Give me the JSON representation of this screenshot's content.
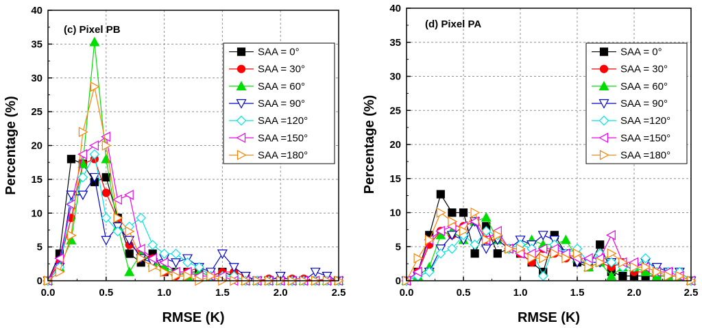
{
  "chart_data": [
    {
      "type": "line",
      "title": "(c) Pixel PB",
      "xlabel": "RMSE (K)",
      "ylabel": "Percentage (%)",
      "xlim": [
        0,
        2.5
      ],
      "ylim": [
        0,
        40
      ],
      "xticks": [
        "0.0",
        "0.5",
        "1.0",
        "1.5",
        "2.0",
        "2.5"
      ],
      "yticks": [
        "0",
        "5",
        "10",
        "15",
        "20",
        "25",
        "30",
        "35",
        "40"
      ],
      "grid": true,
      "legend_position": "top-right",
      "x": [
        0.0,
        0.1,
        0.2,
        0.3,
        0.4,
        0.5,
        0.6,
        0.7,
        0.8,
        0.9,
        1.0,
        1.1,
        1.2,
        1.3,
        1.4,
        1.5,
        1.6,
        1.7,
        1.8,
        1.9,
        2.0,
        2.1,
        2.2,
        2.3,
        2.4,
        2.5
      ],
      "series": [
        {
          "name": "SAA =  0°",
          "color": "#000000",
          "marker": "square",
          "filled": true,
          "values": [
            0,
            4,
            18,
            17.3,
            14.6,
            15.3,
            9.3,
            4,
            2.7,
            4,
            1.3,
            1.3,
            1.3,
            1.3,
            0.7,
            1.3,
            0.7,
            0,
            0,
            0,
            0,
            0,
            0,
            0,
            0,
            0
          ]
        },
        {
          "name": "SAA = 30°",
          "color": "#ff0000",
          "marker": "circle",
          "filled": true,
          "values": [
            0,
            2.7,
            9.3,
            17.3,
            18,
            13,
            9,
            5.3,
            4,
            3.3,
            1.3,
            0.7,
            1.3,
            2,
            0.7,
            1.3,
            1.3,
            0.7,
            0,
            0.3,
            0.3,
            0.3,
            0.3,
            0,
            0.3,
            0
          ]
        },
        {
          "name": "SAA = 60°",
          "color": "#00dd00",
          "marker": "triangle-up",
          "filled": true,
          "values": [
            0,
            2,
            6,
            17.3,
            35.3,
            18,
            8,
            1.3,
            4,
            2.7,
            2,
            1.3,
            0.7,
            1.3,
            0.7,
            0.7,
            0.7,
            0,
            0,
            0,
            0,
            0,
            0,
            0,
            0,
            0
          ]
        },
        {
          "name": "SAA = 90°",
          "color": "#0000cc",
          "marker": "triangle-down",
          "filled": false,
          "values": [
            0,
            2,
            12.7,
            12.7,
            15.3,
            6,
            8,
            6,
            3.3,
            2.7,
            3.3,
            2.7,
            3.3,
            2,
            1.3,
            4,
            2,
            0.7,
            0,
            0,
            0.7,
            0,
            0,
            1.3,
            0.7,
            0
          ]
        },
        {
          "name": "SAA =120°",
          "color": "#00e5e5",
          "marker": "diamond",
          "filled": false,
          "values": [
            0,
            2,
            11.3,
            15.3,
            18.7,
            9.3,
            7.3,
            8,
            9.3,
            5.3,
            4,
            4,
            2.7,
            2,
            0.7,
            0.7,
            0.7,
            0,
            0,
            0,
            0,
            0,
            0,
            0,
            0,
            0
          ]
        },
        {
          "name": "SAA =150°",
          "color": "#ee00ee",
          "marker": "triangle-left",
          "filled": false,
          "values": [
            0,
            3.3,
            11.3,
            18.7,
            20,
            21.3,
            12,
            12.7,
            4.7,
            3.3,
            2.7,
            1.3,
            1.3,
            0.7,
            0.7,
            0.7,
            0,
            0,
            0,
            0,
            0,
            0,
            0,
            0,
            0,
            0
          ]
        },
        {
          "name": "SAA =180°",
          "color": "#ff8000",
          "marker": "triangle-right",
          "filled": false,
          "values": [
            0,
            1.3,
            6.7,
            22,
            28.7,
            20,
            9.3,
            7.3,
            3.3,
            2,
            1.3,
            0.7,
            0.7,
            0,
            0.7,
            0,
            0,
            0,
            0,
            0,
            0,
            0,
            0,
            0,
            0,
            0
          ]
        }
      ]
    },
    {
      "type": "line",
      "title": "(d) Pixel PA",
      "xlabel": "RMSE (K)",
      "ylabel": "Percentage (%)",
      "xlim": [
        0,
        2.5
      ],
      "ylim": [
        0,
        40
      ],
      "xticks": [
        "0.0",
        "0.5",
        "1.0",
        "1.5",
        "2.0",
        "2.5"
      ],
      "yticks": [
        "0",
        "5",
        "10",
        "15",
        "20",
        "25",
        "30",
        "35",
        "40"
      ],
      "grid": true,
      "legend_position": "top-right",
      "x": [
        0.0,
        0.1,
        0.2,
        0.3,
        0.4,
        0.5,
        0.6,
        0.7,
        0.8,
        0.9,
        1.0,
        1.1,
        1.2,
        1.3,
        1.4,
        1.5,
        1.6,
        1.7,
        1.8,
        1.9,
        2.0,
        2.1,
        2.2,
        2.3,
        2.4,
        2.5
      ],
      "series": [
        {
          "name": "SAA =  0°",
          "color": "#000000",
          "marker": "square",
          "filled": true,
          "values": [
            0,
            1.3,
            6.7,
            12.7,
            10,
            10,
            4,
            8,
            4,
            4.7,
            4,
            2.7,
            1.3,
            6.7,
            4,
            2.7,
            2,
            5.3,
            1.3,
            0.7,
            0.7,
            0.7,
            0.7,
            0.7,
            0.7,
            0
          ]
        },
        {
          "name": "SAA = 30°",
          "color": "#ff0000",
          "marker": "circle",
          "filled": true,
          "values": [
            0,
            1.3,
            5.3,
            7.3,
            6.7,
            8,
            8.7,
            6,
            6,
            4.7,
            4,
            2.7,
            4.7,
            4,
            3.3,
            3.3,
            2,
            2.7,
            2,
            2.7,
            1.3,
            1.3,
            0.7,
            0.7,
            0.7,
            0
          ]
        },
        {
          "name": "SAA = 60°",
          "color": "#00dd00",
          "marker": "triangle-up",
          "filled": true,
          "values": [
            0,
            0.7,
            2,
            6.7,
            7.3,
            6,
            8.7,
            9.3,
            6,
            4.7,
            4.7,
            6,
            5.3,
            5.3,
            6,
            3.3,
            2,
            2.7,
            0.7,
            2,
            2,
            1.3,
            0.7,
            0.7,
            0.7,
            0
          ]
        },
        {
          "name": "SAA = 90°",
          "color": "#0000cc",
          "marker": "triangle-down",
          "filled": false,
          "values": [
            0,
            0.7,
            1.3,
            4.7,
            6.7,
            6,
            8.7,
            4.7,
            6,
            4.7,
            6,
            5.3,
            6.7,
            6,
            4,
            2.7,
            2.7,
            2.7,
            2.7,
            2,
            2,
            2.7,
            2,
            1.3,
            1.3,
            0
          ]
        },
        {
          "name": "SAA =120°",
          "color": "#00e5e5",
          "marker": "diamond",
          "filled": false,
          "values": [
            0,
            0.7,
            1.3,
            4,
            4.7,
            6.7,
            5.3,
            7.3,
            6.7,
            4.7,
            5.3,
            4.7,
            0.7,
            5.3,
            4,
            4.7,
            2.7,
            4,
            2.7,
            2,
            2,
            3.3,
            1.3,
            1.3,
            1.3,
            0
          ]
        },
        {
          "name": "SAA =150°",
          "color": "#ee00ee",
          "marker": "triangle-left",
          "filled": false,
          "values": [
            0,
            1.3,
            6,
            7.3,
            8,
            8,
            8.7,
            6,
            7.3,
            4.7,
            4,
            4,
            4.7,
            4.7,
            4,
            3.3,
            3.3,
            3.3,
            6.7,
            2.7,
            2.7,
            2,
            1.3,
            1.3,
            0.7,
            0
          ]
        },
        {
          "name": "SAA =180°",
          "color": "#ff8000",
          "marker": "triangle-right",
          "filled": false,
          "values": [
            0,
            3.3,
            6,
            10,
            8.7,
            7.3,
            10,
            6,
            6.7,
            4.7,
            4.7,
            3.3,
            3.3,
            4,
            3.3,
            4,
            2,
            2.7,
            4,
            2.7,
            2,
            2,
            1.3,
            0.7,
            0.7,
            0
          ]
        }
      ]
    }
  ]
}
